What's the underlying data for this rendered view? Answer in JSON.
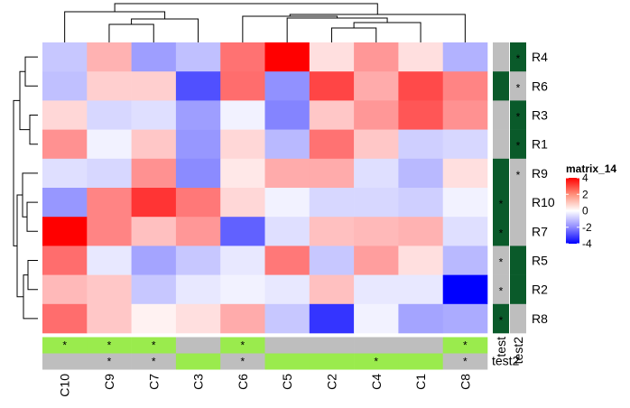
{
  "chart_data": {
    "type": "heatmap",
    "legend_title": "matrix_14",
    "legend_ticks": [
      "4",
      "2",
      "0",
      "-2",
      "-4"
    ],
    "legend_tick_values": [
      4,
      2,
      0,
      -2,
      -4
    ],
    "value_range": [
      -4,
      4
    ],
    "colors": {
      "low": "#0000ff",
      "mid": "#ffffff",
      "high": "#ff0000",
      "annot_on": "#9aeb4d",
      "annot_off": "#bebebe",
      "row_annot": "#0a5a2a"
    },
    "rows": [
      "R4",
      "R6",
      "R3",
      "R1",
      "R9",
      "R10",
      "R7",
      "R5",
      "R2",
      "R8"
    ],
    "cols": [
      "C10",
      "C9",
      "C7",
      "C3",
      "C6",
      "C5",
      "C2",
      "C4",
      "C1",
      "C8"
    ],
    "matrix": [
      [
        -0.6,
        0.9,
        -1.2,
        -0.7,
        1.9,
        4.0,
        0.3,
        1.3,
        0.3,
        -0.9
      ],
      [
        -0.7,
        0.5,
        0.5,
        -2.5,
        2.0,
        -1.4,
        2.7,
        1.0,
        2.6,
        1.6
      ],
      [
        0.4,
        -0.4,
        -0.3,
        -1.2,
        -0.1,
        -1.6,
        0.6,
        1.3,
        2.4,
        1.4
      ],
      [
        1.4,
        -0.1,
        0.6,
        -1.3,
        0.4,
        -0.8,
        1.9,
        0.6,
        -0.5,
        -0.4
      ],
      [
        -0.3,
        -0.4,
        1.4,
        -1.5,
        0.2,
        1.0,
        1.0,
        -0.3,
        -0.8,
        0.3
      ],
      [
        -1.3,
        1.6,
        3.0,
        1.8,
        0.4,
        -0.1,
        -0.4,
        -0.4,
        -0.5,
        -0.1
      ],
      [
        4.0,
        1.6,
        0.7,
        1.3,
        -2.2,
        -0.3,
        0.7,
        0.8,
        0.9,
        -0.3
      ],
      [
        2.0,
        -0.2,
        -1.1,
        -0.6,
        -0.2,
        1.8,
        -0.6,
        1.2,
        0.3,
        -0.8
      ],
      [
        0.8,
        0.6,
        -0.6,
        -0.2,
        -0.1,
        -0.2,
        0.7,
        -0.2,
        -0.2,
        -4.0
      ],
      [
        2.0,
        0.6,
        0.1,
        0.3,
        1.0,
        -0.6,
        -3.0,
        -0.1,
        -1.1,
        -1.0
      ]
    ],
    "col_annotations": [
      {
        "name": "test",
        "on": [
          1,
          1,
          1,
          0,
          1,
          0,
          0,
          0,
          0,
          1
        ],
        "stars": [
          1,
          1,
          1,
          0,
          1,
          0,
          0,
          0,
          0,
          1
        ]
      },
      {
        "name": "test2",
        "on": [
          0,
          0,
          0,
          1,
          0,
          1,
          1,
          1,
          1,
          0
        ],
        "stars": [
          0,
          1,
          1,
          0,
          1,
          0,
          0,
          1,
          0,
          1
        ]
      }
    ],
    "row_annotations": [
      {
        "name": "test",
        "green": [
          0,
          1,
          0,
          0,
          1,
          1,
          1,
          0,
          0,
          1
        ],
        "stars": [
          0,
          0,
          0,
          0,
          0,
          1,
          1,
          1,
          1,
          1
        ]
      },
      {
        "name": "test2",
        "green": [
          1,
          0,
          1,
          1,
          0,
          0,
          0,
          1,
          1,
          0
        ],
        "stars": [
          1,
          1,
          1,
          1,
          1,
          0,
          0,
          0,
          0,
          0
        ]
      }
    ],
    "star": "*",
    "dendrogram_note": "hierarchical clustering on rows and columns"
  }
}
